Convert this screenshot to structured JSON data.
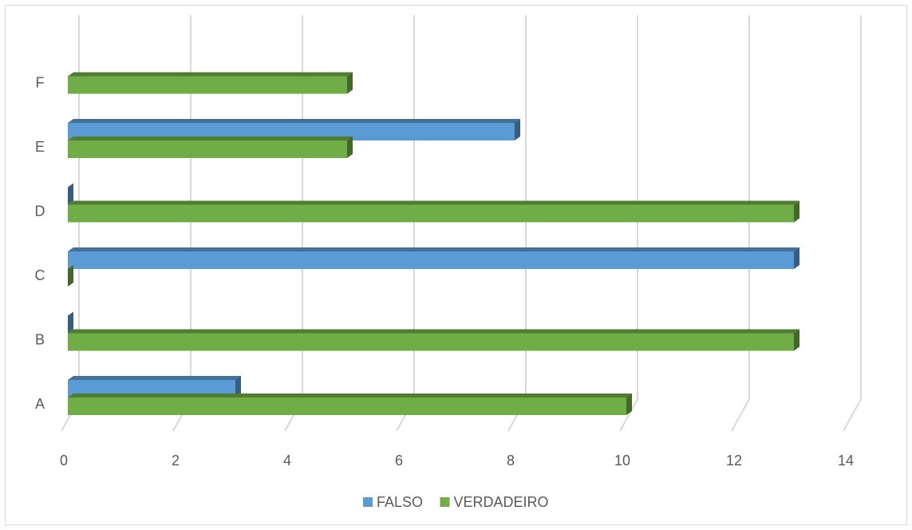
{
  "chart_data": {
    "type": "bar",
    "orientation": "horizontal",
    "style": "3d",
    "categories": [
      "A",
      "B",
      "C",
      "D",
      "E",
      "F"
    ],
    "series": [
      {
        "name": "FALSO",
        "color": "#5b9bd5",
        "values": [
          3,
          0,
          13,
          0,
          8,
          null
        ]
      },
      {
        "name": "VERDADEIRO",
        "color": "#70ad47",
        "values": [
          10,
          13,
          0,
          13,
          5,
          5
        ]
      }
    ],
    "x_ticks": [
      0,
      2,
      4,
      6,
      8,
      10,
      12,
      14
    ],
    "xlim": [
      0,
      14
    ],
    "grid": true,
    "legend_position": "bottom",
    "title": "",
    "xlabel": "",
    "ylabel": ""
  }
}
